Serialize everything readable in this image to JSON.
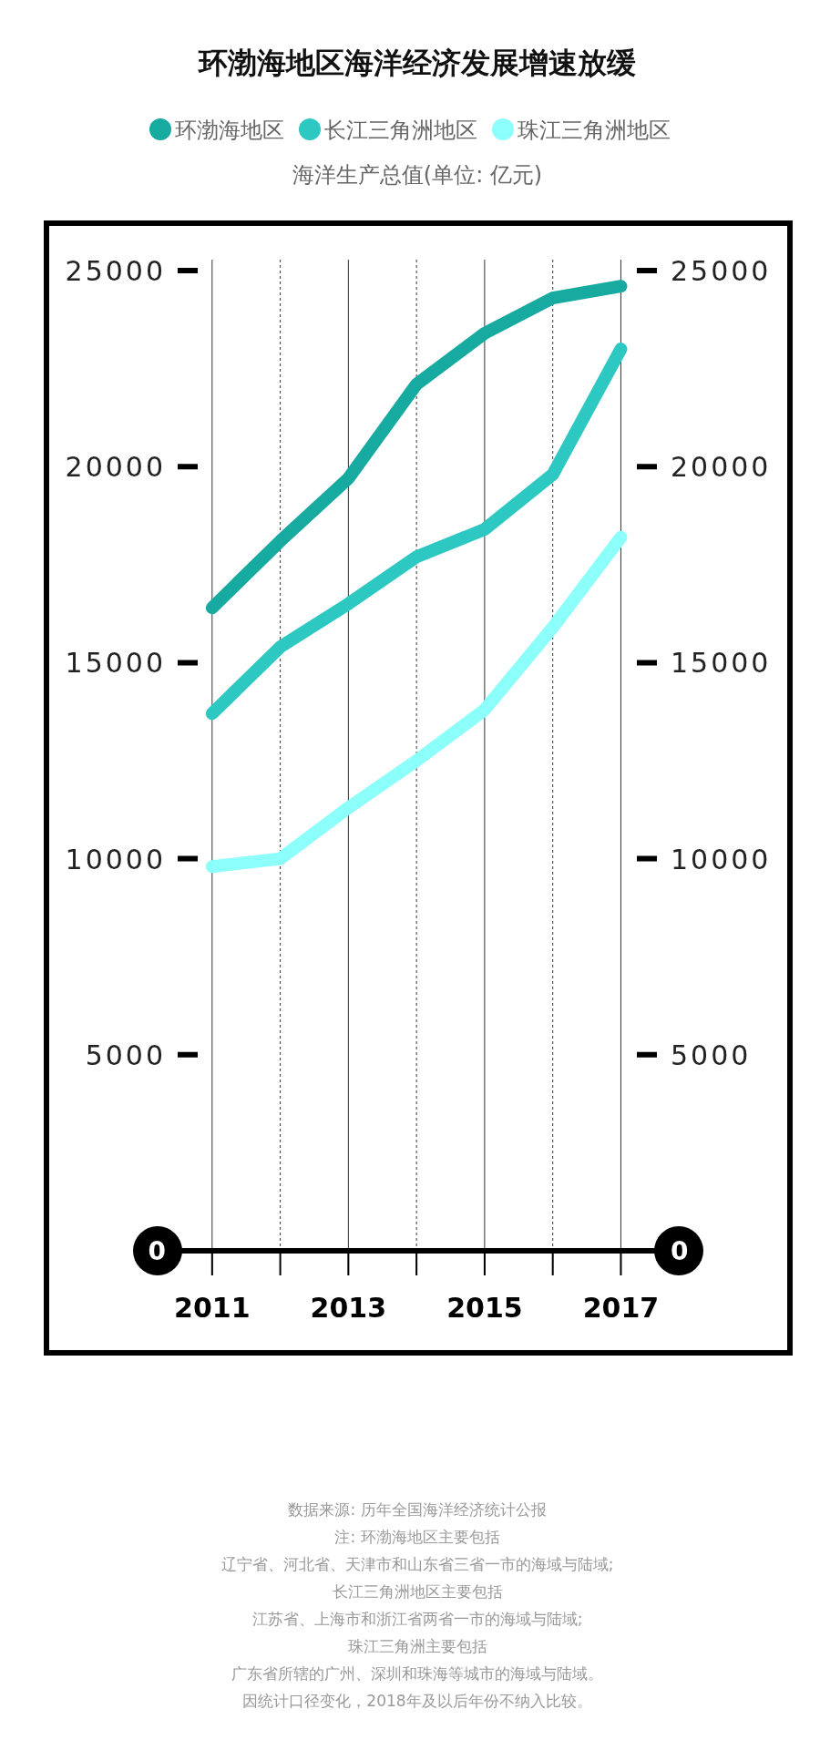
{
  "chart_data": {
    "type": "line",
    "title": "环渤海地区海洋经济发展增速放缓",
    "subtitle": "海洋生产总值(单位: 亿元)",
    "x": [
      2011,
      2012,
      2013,
      2014,
      2015,
      2016,
      2017
    ],
    "series": [
      {
        "name": "环渤海地区",
        "color": "#17aaa1",
        "values": [
          16400,
          18100,
          19700,
          22100,
          23400,
          24300,
          24600
        ]
      },
      {
        "name": "长江三角洲地区",
        "color": "#2ec8c3",
        "values": [
          13700,
          15400,
          16500,
          17700,
          18400,
          19800,
          23000
        ]
      },
      {
        "name": "珠江三角洲地区",
        "color": "#8cfffb",
        "values": [
          9800,
          10000,
          11300,
          12500,
          13800,
          15900,
          18200
        ]
      }
    ],
    "xlim": [
      2010.2,
      2017.85
    ],
    "xticks": [
      2011,
      {
        "value": 2012,
        "label": null
      },
      2013,
      {
        "value": 2014,
        "label": null
      },
      2015,
      {
        "value": 2016,
        "label": null
      },
      2017
    ],
    "ylim": [
      0,
      25000
    ],
    "yticks": [
      0,
      5000,
      10000,
      15000,
      20000,
      25000
    ],
    "y2lim": [
      0,
      25000
    ],
    "y2ticks": [
      0,
      5000,
      10000,
      15000,
      20000,
      25000
    ],
    "grid": "x",
    "legend": "top",
    "marker": "none",
    "line_style": "solid",
    "annotations": [
      "数据来源: 历年全国海洋经济统计公报",
      "注: 环渤海地区主要包括",
      "辽宁省、河北省、天津市和山东省三省一市的海域与陆域;",
      "长江三角洲地区主要包括",
      "江苏省、上海市和浙江省两省一市的海域与陆域;",
      "珠江三角洲主要包括",
      "广东省所辖的广州、深圳和珠海等城市的海域与陆域。",
      "因统计口径变化，2018年及以后年份不纳入比较。"
    ]
  }
}
